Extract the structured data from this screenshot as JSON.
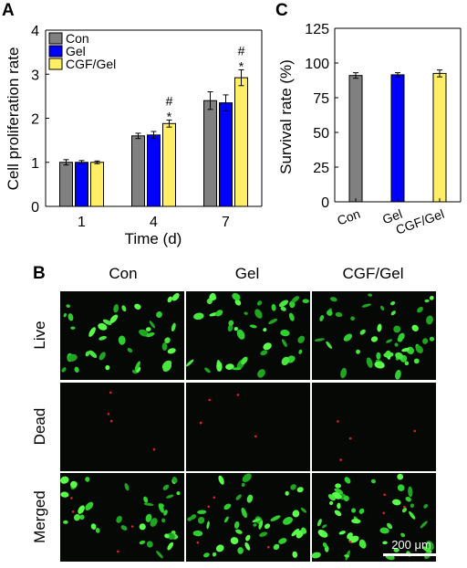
{
  "panels": {
    "a": "A",
    "b": "B",
    "c": "C"
  },
  "chart_data": [
    {
      "type": "bar",
      "panel": "A",
      "categories": [
        "1",
        "4",
        "7"
      ],
      "xlabel": "Time (d)",
      "ylabel": "Cell  proliferation rate",
      "ylim": [
        0,
        4
      ],
      "yticks": [
        "0",
        "1",
        "2",
        "3",
        "4"
      ],
      "legend": "top-left",
      "series": [
        {
          "name": "Con",
          "color": "#808080",
          "values": [
            1.0,
            1.6,
            2.4
          ],
          "errors": [
            0.06,
            0.06,
            0.2
          ]
        },
        {
          "name": "Gel",
          "color": "#0000ff",
          "values": [
            1.0,
            1.62,
            2.35
          ],
          "errors": [
            0.04,
            0.08,
            0.18
          ]
        },
        {
          "name": "CGF/Gel",
          "color": "#ffee66",
          "values": [
            1.0,
            1.88,
            2.92
          ],
          "errors": [
            0.03,
            0.08,
            0.18
          ]
        }
      ],
      "annotations": [
        {
          "category": "4",
          "series": "CGF/Gel",
          "symbols": [
            "#",
            "*"
          ]
        },
        {
          "category": "7",
          "series": "CGF/Gel",
          "symbols": [
            "#",
            "*"
          ]
        }
      ]
    },
    {
      "type": "bar",
      "panel": "C",
      "categories": [
        "Con",
        "Gel",
        "CGF/Gel"
      ],
      "colors": [
        "#808080",
        "#0000ff",
        "#ffee66"
      ],
      "values": [
        91,
        91.5,
        92.5
      ],
      "errors": [
        2,
        1.5,
        2.5
      ],
      "ylabel": "Survival rate (%)",
      "ylim": [
        0,
        125
      ],
      "yticks": [
        "0",
        "25",
        "50",
        "75",
        "100",
        "125"
      ]
    }
  ],
  "micrographs": {
    "columns": [
      "Con",
      "Gel",
      "CGF/Gel"
    ],
    "rows": [
      "Live",
      "Dead",
      "Merged"
    ],
    "scale_bar": "200 μm"
  }
}
